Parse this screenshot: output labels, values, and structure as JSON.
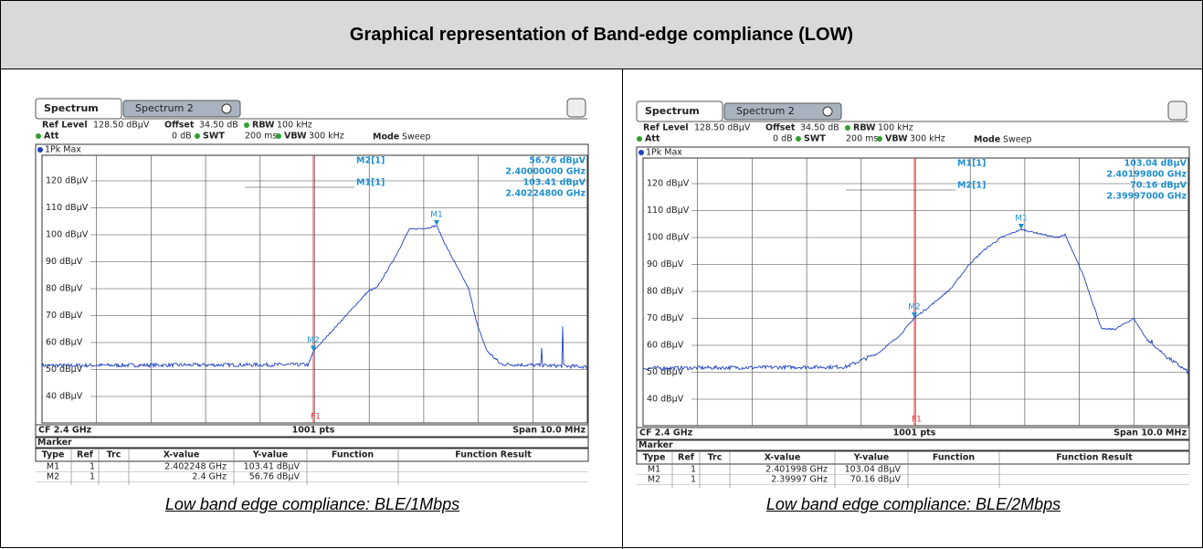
{
  "title": "Graphical representation of Band-edge compliance (LOW)",
  "panels": [
    {
      "tabs": [
        "Spectrum",
        "Spectrum 2"
      ],
      "ref_level_label": "Ref Level",
      "ref_level": "128.50 dBµV",
      "offset_label": "Offset",
      "offset": "34.50 dB",
      "rbw_label": "RBW",
      "rbw": "100 kHz",
      "att_label": "Att",
      "att": "0 dB",
      "swt_label": "SWT",
      "swt": "200 ms",
      "vbw_label": "VBW",
      "vbw": "300 kHz",
      "mode_label": "Mode",
      "mode": "Sweep",
      "trace_label": "1Pk Max",
      "y_labels": [
        "120 dBµV",
        "110 dBµV",
        "100 dBµV",
        "90 dBµV",
        "80 dBµV",
        "70 dBµV",
        "60 dBµV",
        "50 dBµV",
        "40 dBµV"
      ],
      "readouts": [
        {
          "name": "M2[1]",
          "level": "56.76 dBµV",
          "freq": "2.40000000 GHz"
        },
        {
          "name": "M1[1]",
          "level": "103.41 dBµV",
          "freq": "2.40224800 GHz"
        }
      ],
      "flags": [
        "M1",
        "M2"
      ],
      "line_label": "F1",
      "footer": {
        "left": "CF 2.4 GHz",
        "center": "1001 pts",
        "right": "Span 10.0 MHz"
      },
      "marker_table": {
        "title": "Marker",
        "headers": [
          "Type",
          "Ref",
          "Trc",
          "X-value",
          "Y-value",
          "Function",
          "Function Result"
        ],
        "rows": [
          [
            "M1",
            "1",
            "2.402248 GHz",
            "103.41 dBµV"
          ],
          [
            "M2",
            "1",
            "2.4 GHz",
            "56.76 dBµV"
          ]
        ]
      },
      "caption": "Low band edge compliance: BLE/1Mbps"
    },
    {
      "tabs": [
        "Spectrum",
        "Spectrum 2"
      ],
      "ref_level_label": "Ref Level",
      "ref_level": "128.50 dBµV",
      "offset_label": "Offset",
      "offset": "34.50 dB",
      "rbw_label": "RBW",
      "rbw": "100 kHz",
      "att_label": "Att",
      "att": "0 dB",
      "swt_label": "SWT",
      "swt": "200 ms",
      "vbw_label": "VBW",
      "vbw": "300 kHz",
      "mode_label": "Mode",
      "mode": "Sweep",
      "trace_label": "1Pk Max",
      "y_labels": [
        "120 dBµV",
        "110 dBµV",
        "100 dBµV",
        "90 dBµV",
        "80 dBµV",
        "70 dBµV",
        "60 dBµV",
        "50 dBµV",
        "40 dBµV"
      ],
      "readouts": [
        {
          "name": "M1[1]",
          "level": "103.04 dBµV",
          "freq": "2.40199800 GHz"
        },
        {
          "name": "M2[1]",
          "level": "70.16 dBµV",
          "freq": "2.39997000 GHz"
        }
      ],
      "flags": [
        "M1",
        "M2"
      ],
      "line_label": "F1",
      "footer": {
        "left": "CF 2.4 GHz",
        "center": "1001 pts",
        "right": "Span 10.0 MHz"
      },
      "marker_table": {
        "title": "Marker",
        "headers": [
          "Type",
          "Ref",
          "Trc",
          "X-value",
          "Y-value",
          "Function",
          "Function Result"
        ],
        "rows": [
          [
            "M1",
            "1",
            "2.401998 GHz",
            "103.04 dBµV"
          ],
          [
            "M2",
            "1",
            "2.39997 GHz",
            "70.16 dBµV"
          ]
        ]
      },
      "caption": "Low band edge compliance: BLE/2Mbps"
    }
  ]
}
